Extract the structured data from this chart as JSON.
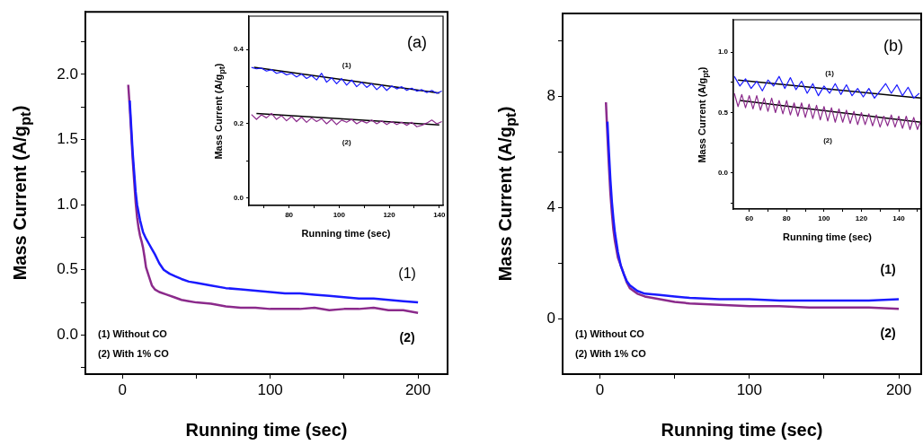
{
  "chart_data": [
    {
      "type": "line",
      "xlabel": "Running time (sec)",
      "ylabel": "Mass Current (A/g$_{pt}$)",
      "xlim": [
        -25,
        220
      ],
      "xticks": [
        0,
        {
          "value": 50,
          "label": null
        },
        100,
        {
          "value": 150,
          "label": null
        },
        200
      ],
      "ylim": [
        -0.3,
        2.48
      ],
      "yticks": [
        {
          "value": -0.25,
          "label": null
        },
        {
          "value": 0,
          "label": "0.0"
        },
        {
          "value": 0.25,
          "label": null
        },
        {
          "value": 0.5,
          "label": "0.5"
        },
        {
          "value": 0.75,
          "label": null
        },
        {
          "value": 1,
          "label": "1.0"
        },
        {
          "value": 1.25,
          "label": null
        },
        {
          "value": 1.5,
          "label": "1.5"
        },
        {
          "value": 1.75,
          "label": null
        },
        {
          "value": 2,
          "label": "2.0"
        },
        {
          "value": 2.25,
          "label": null
        }
      ],
      "grid": false,
      "annotations": [
        "(1) Without CO",
        "(2) With 1% CO"
      ],
      "series": [
        {
          "name": "(1)",
          "color": "#1a1aff",
          "x": [
            5,
            6,
            7,
            8,
            9,
            10,
            12,
            14,
            16,
            18,
            20,
            22,
            25,
            28,
            32,
            36,
            40,
            45,
            50,
            60,
            70,
            80,
            90,
            100,
            110,
            120,
            130,
            140,
            150,
            160,
            170,
            180,
            190,
            200
          ],
          "values": [
            1.8,
            1.6,
            1.4,
            1.25,
            1.1,
            1.0,
            0.88,
            0.79,
            0.74,
            0.7,
            0.66,
            0.62,
            0.55,
            0.5,
            0.47,
            0.45,
            0.43,
            0.41,
            0.4,
            0.38,
            0.36,
            0.35,
            0.34,
            0.33,
            0.32,
            0.32,
            0.31,
            0.3,
            0.29,
            0.28,
            0.28,
            0.27,
            0.26,
            0.25
          ]
        },
        {
          "name": "(2)",
          "color": "#8b2a8b",
          "x": [
            4,
            5,
            6,
            7,
            8,
            9,
            10,
            11,
            12,
            13,
            14,
            15,
            16,
            18,
            20,
            22,
            25,
            30,
            35,
            40,
            45,
            50,
            60,
            70,
            80,
            90,
            100,
            110,
            120,
            130,
            140,
            150,
            160,
            170,
            180,
            190,
            200
          ],
          "values": [
            1.92,
            1.75,
            1.55,
            1.35,
            1.18,
            1.02,
            0.9,
            0.82,
            0.76,
            0.72,
            0.67,
            0.6,
            0.52,
            0.45,
            0.38,
            0.35,
            0.33,
            0.31,
            0.29,
            0.27,
            0.26,
            0.25,
            0.24,
            0.22,
            0.21,
            0.21,
            0.2,
            0.2,
            0.2,
            0.21,
            0.19,
            0.2,
            0.2,
            0.21,
            0.19,
            0.19,
            0.17
          ]
        }
      ]
    },
    {
      "type": "line",
      "xlabel": "Running time (sec)",
      "ylabel": "Mass Current (A/g$_{pt}$)",
      "xlim": [
        64,
        141.5
      ],
      "xticks": [
        {
          "value": 70,
          "label": null
        },
        80,
        {
          "value": 90,
          "label": null
        },
        100,
        {
          "value": 110,
          "label": null
        },
        120,
        {
          "value": 130,
          "label": null
        },
        140
      ],
      "ylim": [
        -0.02,
        0.49
      ],
      "yticks": [
        {
          "value": 0,
          "label": "0.0"
        },
        {
          "value": 0.1,
          "label": null
        },
        {
          "value": 0.2,
          "label": "0.2"
        },
        {
          "value": 0.3,
          "label": null
        },
        {
          "value": 0.4,
          "label": "0.4"
        }
      ],
      "grid": false,
      "annotations": [
        "(a)"
      ],
      "series": [
        {
          "name": "(1)",
          "color": "#1a1aff",
          "x": [
            65,
            67,
            69,
            71,
            73,
            75,
            77,
            79,
            81,
            83,
            85,
            87,
            89,
            91,
            93,
            95,
            97,
            99,
            101,
            103,
            105,
            107,
            109,
            111,
            113,
            115,
            117,
            119,
            121,
            123,
            125,
            127,
            129,
            131,
            133,
            135,
            137,
            139,
            141
          ],
          "values": [
            0.352,
            0.348,
            0.35,
            0.342,
            0.346,
            0.336,
            0.34,
            0.332,
            0.336,
            0.326,
            0.334,
            0.322,
            0.33,
            0.318,
            0.336,
            0.312,
            0.324,
            0.308,
            0.322,
            0.304,
            0.318,
            0.3,
            0.312,
            0.298,
            0.308,
            0.292,
            0.304,
            0.29,
            0.302,
            0.294,
            0.3,
            0.29,
            0.296,
            0.288,
            0.292,
            0.284,
            0.29,
            0.282,
            0.288
          ]
        },
        {
          "name": "(2)",
          "color": "#8b2a8b",
          "x": [
            65,
            67,
            69,
            71,
            73,
            75,
            77,
            79,
            81,
            83,
            85,
            87,
            89,
            91,
            93,
            95,
            97,
            99,
            101,
            103,
            105,
            107,
            109,
            111,
            113,
            115,
            117,
            119,
            121,
            123,
            125,
            127,
            129,
            131,
            133,
            135,
            137,
            139,
            141
          ],
          "values": [
            0.225,
            0.212,
            0.224,
            0.216,
            0.228,
            0.212,
            0.222,
            0.208,
            0.22,
            0.206,
            0.218,
            0.204,
            0.216,
            0.206,
            0.214,
            0.2,
            0.212,
            0.198,
            0.21,
            0.204,
            0.212,
            0.2,
            0.208,
            0.202,
            0.21,
            0.2,
            0.208,
            0.198,
            0.206,
            0.198,
            0.204,
            0.196,
            0.204,
            0.192,
            0.196,
            0.202,
            0.21,
            0.2,
            0.206
          ]
        },
        {
          "color": "#000000",
          "x": [
            66,
            140
          ],
          "values": [
            0.352,
            0.283
          ]
        },
        {
          "color": "#000000",
          "x": [
            67,
            140
          ],
          "values": [
            0.228,
            0.197
          ]
        }
      ]
    },
    {
      "type": "line",
      "xlabel": "Running time (sec)",
      "ylabel": "Mass Current (A/g$_{pt}$)",
      "xlim": [
        -25,
        215
      ],
      "xticks": [
        0,
        {
          "value": 50,
          "label": null
        },
        100,
        {
          "value": 150,
          "label": null
        },
        200
      ],
      "ylim": [
        -2,
        11
      ],
      "yticks": [
        0,
        {
          "value": 2,
          "label": null
        },
        4,
        {
          "value": 6,
          "label": null
        },
        8,
        {
          "value": 10,
          "label": null
        }
      ],
      "grid": false,
      "annotations": [
        "(1) Without CO",
        "(2) With 1% CO"
      ],
      "series": [
        {
          "name": "(1)",
          "color": "#1a1aff",
          "x": [
            5,
            6,
            7,
            8,
            9,
            10,
            12,
            14,
            16,
            18,
            20,
            25,
            30,
            40,
            50,
            60,
            80,
            100,
            120,
            140,
            160,
            180,
            200
          ],
          "values": [
            7.1,
            6.0,
            5.0,
            4.2,
            3.6,
            3.1,
            2.4,
            1.9,
            1.6,
            1.35,
            1.2,
            1.0,
            0.9,
            0.85,
            0.8,
            0.75,
            0.7,
            0.7,
            0.65,
            0.65,
            0.65,
            0.65,
            0.7
          ]
        },
        {
          "name": "(2)",
          "color": "#8b2a8b",
          "x": [
            4,
            5,
            6,
            7,
            8,
            9,
            10,
            12,
            14,
            16,
            18,
            20,
            25,
            30,
            40,
            50,
            60,
            80,
            100,
            120,
            140,
            160,
            180,
            200
          ],
          "values": [
            7.8,
            6.6,
            5.5,
            4.5,
            3.8,
            3.2,
            2.8,
            2.2,
            1.9,
            1.6,
            1.3,
            1.1,
            0.9,
            0.8,
            0.7,
            0.6,
            0.55,
            0.5,
            0.45,
            0.45,
            0.4,
            0.4,
            0.4,
            0.35
          ]
        }
      ]
    },
    {
      "type": "line",
      "xlabel": "Running time (sec)",
      "ylabel": "Mass Current (A/g$_{pt}$)",
      "xlim": [
        51.5,
        152
      ],
      "xticks": [
        60,
        {
          "value": 70,
          "label": null
        },
        80,
        {
          "value": 90,
          "label": null
        },
        100,
        {
          "value": 110,
          "label": null
        },
        120,
        {
          "value": 130,
          "label": null
        },
        140,
        {
          "value": 150,
          "label": null
        }
      ],
      "ylim": [
        -0.3,
        1.27
      ],
      "yticks": [
        {
          "value": -0.25,
          "label": null
        },
        {
          "value": 0,
          "label": "0.0"
        },
        {
          "value": 0.25,
          "label": null
        },
        {
          "value": 0.5,
          "label": "0.5"
        },
        {
          "value": 0.75,
          "label": null
        },
        {
          "value": 1,
          "label": "1.0"
        }
      ],
      "grid": false,
      "annotations": [
        "(b)"
      ],
      "series": [
        {
          "name": "(1)",
          "color": "#1a1aff",
          "x": [
            52,
            55,
            58,
            61,
            64,
            67,
            70,
            73,
            76,
            79,
            82,
            85,
            88,
            91,
            94,
            97,
            100,
            103,
            106,
            109,
            112,
            115,
            118,
            121,
            124,
            127,
            130,
            133,
            136,
            139,
            142,
            145,
            148,
            151
          ],
          "values": [
            0.8,
            0.72,
            0.78,
            0.7,
            0.76,
            0.68,
            0.77,
            0.72,
            0.8,
            0.7,
            0.79,
            0.69,
            0.76,
            0.66,
            0.74,
            0.64,
            0.72,
            0.66,
            0.74,
            0.65,
            0.73,
            0.64,
            0.7,
            0.63,
            0.7,
            0.62,
            0.68,
            0.74,
            0.66,
            0.73,
            0.64,
            0.71,
            0.62,
            0.66
          ]
        },
        {
          "name": "(2)",
          "color": "#8b2a8b",
          "x": [
            52,
            54,
            56,
            58,
            60,
            62,
            64,
            66,
            68,
            70,
            72,
            74,
            76,
            78,
            80,
            82,
            84,
            86,
            88,
            90,
            92,
            94,
            96,
            98,
            100,
            102,
            104,
            106,
            108,
            110,
            112,
            114,
            116,
            118,
            120,
            122,
            124,
            126,
            128,
            130,
            132,
            134,
            136,
            138,
            140,
            142,
            144,
            146,
            148,
            150,
            152
          ],
          "values": [
            0.66,
            0.55,
            0.65,
            0.54,
            0.64,
            0.53,
            0.64,
            0.52,
            0.62,
            0.51,
            0.62,
            0.5,
            0.6,
            0.49,
            0.6,
            0.48,
            0.58,
            0.47,
            0.58,
            0.46,
            0.57,
            0.45,
            0.56,
            0.44,
            0.55,
            0.43,
            0.54,
            0.42,
            0.53,
            0.42,
            0.52,
            0.41,
            0.51,
            0.4,
            0.5,
            0.4,
            0.49,
            0.39,
            0.48,
            0.38,
            0.47,
            0.39,
            0.48,
            0.38,
            0.47,
            0.37,
            0.47,
            0.36,
            0.46,
            0.36,
            0.44
          ]
        },
        {
          "color": "#000000",
          "x": [
            54,
            152
          ],
          "values": [
            0.77,
            0.62
          ]
        },
        {
          "color": "#000000",
          "x": [
            55,
            152
          ],
          "values": [
            0.6,
            0.42
          ]
        }
      ]
    }
  ]
}
